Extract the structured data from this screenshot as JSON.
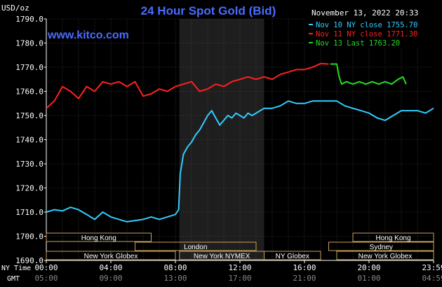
{
  "header": {
    "unit": "USD/oz",
    "title": "24 Hour Spot Gold (Bid)",
    "timestamp": "November 13, 2022 20:33",
    "watermark": "www.kitco.com"
  },
  "legend": [
    {
      "label": "Nov 10 NY close 1755.70",
      "color": "#33ccff"
    },
    {
      "label": "Nov 11 NY close 1771.30",
      "color": "#ff2020"
    },
    {
      "label": "Nov 13 Last 1763.20",
      "color": "#22dd22"
    }
  ],
  "market_bars": [
    {
      "label": "Hong Kong",
      "start": 0,
      "end": 6.5,
      "row": 0
    },
    {
      "label": "London",
      "start": 5.5,
      "end": 13.0,
      "row": 1
    },
    {
      "label": "New York Globex",
      "start": 0,
      "end": 8.0,
      "row": 2
    },
    {
      "label": "New York NYMEX",
      "start": 8.25,
      "end": 13.5,
      "row": 2
    },
    {
      "label": "NY Globex",
      "start": 13.5,
      "end": 17.0,
      "row": 2
    },
    {
      "label": "Hong Kong",
      "start": 19.0,
      "end": 24.0,
      "row": 0
    },
    {
      "label": "Sydney",
      "start": 17.5,
      "end": 24.0,
      "row": 1
    },
    {
      "label": "New York Globex",
      "start": 18.0,
      "end": 24.0,
      "row": 2
    }
  ],
  "row_labels": {
    "ny_time": "NY Time",
    "gmt": "GMT"
  },
  "chart_data": {
    "type": "line",
    "title": "24 Hour Spot Gold (Bid)",
    "ylabel": "USD/oz",
    "ylim": [
      1690,
      1790
    ],
    "yticks": [
      "1690.0",
      "1700.0",
      "1710.0",
      "1720.0",
      "1730.0",
      "1740.0",
      "1750.0",
      "1760.0",
      "1770.0",
      "1780.0",
      "1790.0"
    ],
    "xlim": [
      0,
      24
    ],
    "xticks_ny": [
      "00:00",
      "04:00",
      "08:00",
      "12:00",
      "16:00",
      "20:00",
      "23:59"
    ],
    "xticks_gmt": [
      "05:00",
      "09:00",
      "13:00",
      "17:00",
      "21:00",
      "01:00",
      "04:59"
    ],
    "xtick_hours": [
      0,
      4,
      8,
      12,
      16,
      20,
      24
    ],
    "highlight_hours": [
      8.25,
      13.5
    ],
    "grid": true,
    "legend_position": "top-right",
    "series": [
      {
        "name": "Nov 10 NY close 1755.70",
        "color": "#33ccff",
        "x": [
          0,
          0.5,
          1,
          1.5,
          2,
          2.5,
          3,
          3.5,
          4,
          4.5,
          5,
          5.5,
          6,
          6.5,
          7,
          7.5,
          8,
          8.2,
          8.3,
          8.5,
          8.75,
          9,
          9.25,
          9.5,
          9.75,
          10,
          10.25,
          10.5,
          10.75,
          11,
          11.25,
          11.5,
          11.75,
          12,
          12.25,
          12.5,
          12.75,
          13,
          13.5,
          14,
          14.5,
          15,
          15.5,
          16,
          16.5,
          17,
          17.5,
          18,
          18.5,
          19,
          19.5,
          20,
          20.5,
          21,
          21.5,
          22,
          22.5,
          23,
          23.5,
          24
        ],
        "y": [
          1710,
          1711,
          1710.5,
          1712,
          1711,
          1709,
          1707,
          1710,
          1708,
          1707,
          1706,
          1706.5,
          1707,
          1708,
          1707,
          1708,
          1709,
          1711,
          1726,
          1734,
          1737,
          1739,
          1742,
          1744,
          1747,
          1750,
          1752,
          1749,
          1746,
          1748,
          1750,
          1749,
          1751,
          1750,
          1749,
          1751,
          1750,
          1751,
          1753,
          1753,
          1754,
          1756,
          1755,
          1755,
          1756,
          1756,
          1756,
          1756,
          1754,
          1753,
          1752,
          1751,
          1749,
          1748,
          1750,
          1752,
          1752,
          1752,
          1751,
          1753
        ]
      },
      {
        "name": "Nov 11 NY close 1771.30",
        "color": "#ff2020",
        "x": [
          0,
          0.5,
          1,
          1.5,
          2,
          2.5,
          3,
          3.5,
          4,
          4.5,
          5,
          5.5,
          6,
          6.5,
          7,
          7.5,
          8,
          8.5,
          9,
          9.5,
          10,
          10.5,
          11,
          11.5,
          12,
          12.5,
          13,
          13.5,
          14,
          14.5,
          15,
          15.5,
          16,
          16.5,
          17,
          17.5
        ],
        "y": [
          1753,
          1756,
          1762,
          1760,
          1757,
          1762,
          1760,
          1764,
          1763,
          1764,
          1762,
          1764,
          1758,
          1759,
          1761,
          1760,
          1762,
          1763,
          1764,
          1760,
          1761,
          1763,
          1762,
          1764,
          1765,
          1766,
          1765,
          1766,
          1765,
          1767,
          1768,
          1769,
          1769,
          1770,
          1771.5,
          1771.3
        ]
      },
      {
        "name": "Nov 13 Last 1763.20",
        "color": "#22dd22",
        "x": [
          17.6,
          18,
          18.15,
          18.3,
          18.6,
          19,
          19.4,
          19.8,
          20.2,
          20.6,
          21,
          21.4,
          21.8,
          22.1,
          22.3
        ],
        "y": [
          1771.3,
          1771.3,
          1766,
          1763,
          1764,
          1763,
          1764,
          1763,
          1764,
          1763,
          1764,
          1763,
          1765,
          1766,
          1763
        ]
      }
    ]
  }
}
